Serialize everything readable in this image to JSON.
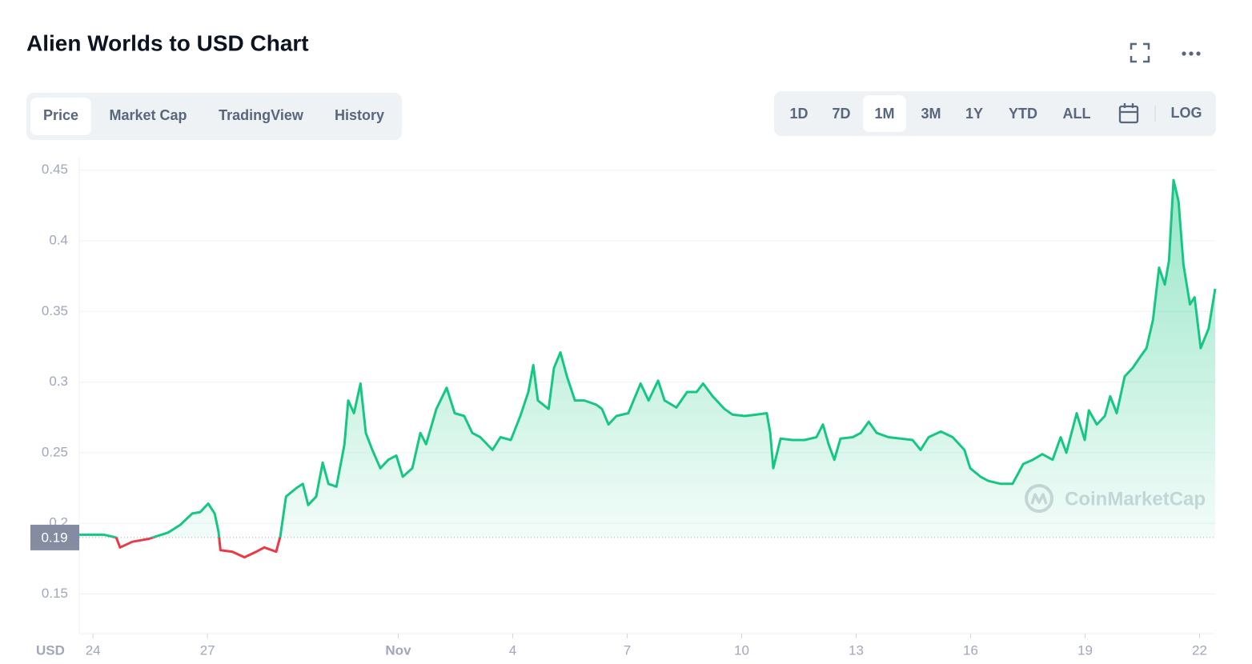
{
  "header": {
    "title": "Alien Worlds to USD Chart"
  },
  "tabs": {
    "items": [
      "Price",
      "Market Cap",
      "TradingView",
      "History"
    ],
    "active": 0
  },
  "ranges": {
    "items": [
      "1D",
      "7D",
      "1M",
      "3M",
      "1Y",
      "YTD",
      "ALL"
    ],
    "active": 2,
    "log": "LOG"
  },
  "chart_data": {
    "type": "line",
    "axis_label": "USD",
    "watermark": "CoinMarketCap",
    "up_color": "#16c784",
    "down_color": "#ea3943",
    "grid": true,
    "baseline": 0.19,
    "xlim": [
      -0.36,
      29.41
    ],
    "xticks": [
      {
        "value": 0,
        "label": "24"
      },
      {
        "value": 3,
        "label": "27"
      },
      {
        "value": 8,
        "label": "Nov"
      },
      {
        "value": 11,
        "label": "4"
      },
      {
        "value": 14,
        "label": "7"
      },
      {
        "value": 17,
        "label": "10"
      },
      {
        "value": 20,
        "label": "13"
      },
      {
        "value": 23,
        "label": "16"
      },
      {
        "value": 26,
        "label": "19"
      },
      {
        "value": 29,
        "label": "22"
      }
    ],
    "ylim": [
      0.122,
      0.46
    ],
    "yticks": [
      0.15,
      0.2,
      0.25,
      0.3,
      0.35,
      0.4,
      0.45
    ],
    "x": [
      -0.36,
      0.29,
      0.61,
      0.71,
      1.03,
      1.45,
      1.97,
      2.29,
      2.6,
      2.81,
      3.02,
      3.19,
      3.29,
      3.34,
      3.65,
      3.97,
      4.28,
      4.49,
      4.8,
      4.91,
      5.06,
      5.33,
      5.5,
      5.64,
      5.85,
      6.02,
      6.17,
      6.38,
      6.59,
      6.69,
      6.84,
      7.01,
      7.15,
      7.32,
      7.53,
      7.74,
      7.95,
      8.12,
      8.37,
      8.58,
      8.73,
      9.0,
      9.27,
      9.48,
      9.73,
      9.94,
      10.15,
      10.47,
      10.68,
      10.95,
      11.2,
      11.41,
      11.54,
      11.66,
      11.94,
      12.08,
      12.25,
      12.42,
      12.63,
      12.88,
      13.19,
      13.34,
      13.51,
      13.72,
      14.03,
      14.35,
      14.56,
      14.81,
      14.98,
      15.29,
      15.57,
      15.82,
      15.99,
      16.24,
      16.55,
      16.76,
      17.08,
      17.39,
      17.66,
      17.75,
      17.83,
      18.02,
      18.33,
      18.65,
      18.96,
      19.13,
      19.28,
      19.43,
      19.59,
      19.91,
      20.12,
      20.33,
      20.54,
      20.85,
      21.17,
      21.48,
      21.69,
      21.9,
      22.22,
      22.53,
      22.84,
      22.99,
      23.26,
      23.47,
      23.79,
      24.1,
      24.38,
      24.63,
      24.88,
      25.15,
      25.36,
      25.51,
      25.78,
      25.99,
      26.1,
      26.31,
      26.52,
      26.66,
      26.83,
      27.04,
      27.25,
      27.45,
      27.61,
      27.78,
      27.94,
      28.09,
      28.2,
      28.32,
      28.45,
      28.58,
      28.75,
      28.87,
      29.03,
      29.24,
      29.41
    ],
    "values": [
      0.192,
      0.192,
      0.19,
      0.183,
      0.187,
      0.189,
      0.1935,
      0.199,
      0.207,
      0.208,
      0.214,
      0.207,
      0.194,
      0.181,
      0.18,
      0.176,
      0.18,
      0.183,
      0.18,
      0.191,
      0.219,
      0.225,
      0.228,
      0.213,
      0.219,
      0.243,
      0.228,
      0.226,
      0.256,
      0.287,
      0.278,
      0.299,
      0.264,
      0.252,
      0.239,
      0.245,
      0.248,
      0.233,
      0.239,
      0.264,
      0.256,
      0.281,
      0.296,
      0.278,
      0.276,
      0.264,
      0.261,
      0.252,
      0.261,
      0.259,
      0.276,
      0.293,
      0.312,
      0.287,
      0.281,
      0.31,
      0.321,
      0.304,
      0.287,
      0.287,
      0.284,
      0.281,
      0.27,
      0.276,
      0.278,
      0.299,
      0.287,
      0.301,
      0.287,
      0.282,
      0.293,
      0.293,
      0.299,
      0.29,
      0.281,
      0.277,
      0.276,
      0.277,
      0.278,
      0.264,
      0.239,
      0.26,
      0.259,
      0.259,
      0.261,
      0.27,
      0.256,
      0.245,
      0.26,
      0.261,
      0.264,
      0.272,
      0.264,
      0.261,
      0.26,
      0.259,
      0.252,
      0.261,
      0.265,
      0.261,
      0.252,
      0.239,
      0.233,
      0.23,
      0.228,
      0.228,
      0.242,
      0.245,
      0.249,
      0.245,
      0.261,
      0.25,
      0.278,
      0.259,
      0.28,
      0.27,
      0.276,
      0.29,
      0.278,
      0.304,
      0.31,
      0.318,
      0.324,
      0.344,
      0.381,
      0.369,
      0.386,
      0.443,
      0.428,
      0.383,
      0.355,
      0.36,
      0.324,
      0.338,
      0.366
    ]
  }
}
